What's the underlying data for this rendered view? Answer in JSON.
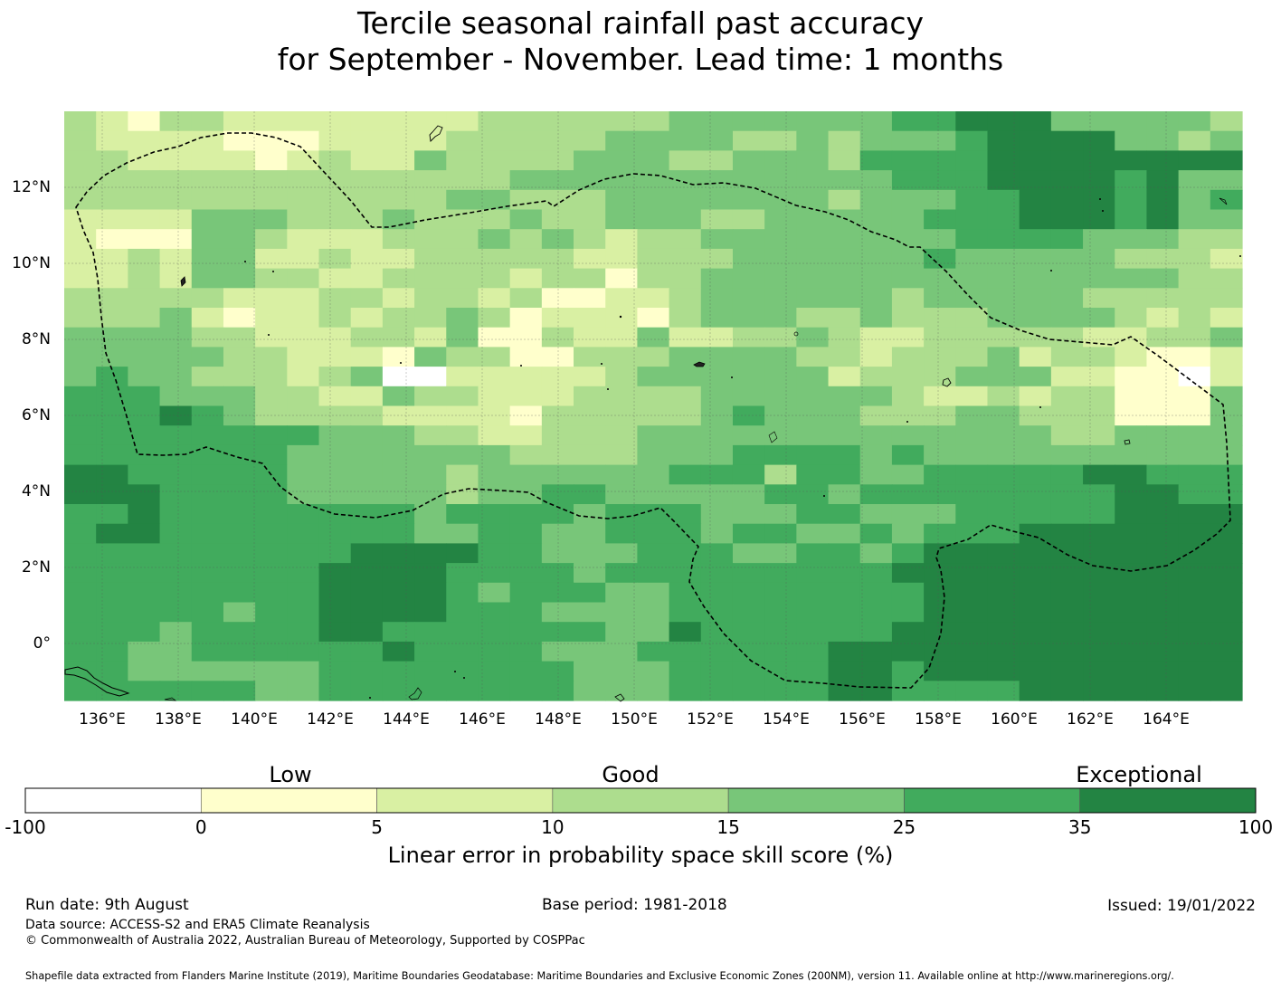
{
  "title": {
    "line1": "Tercile seasonal rainfall past accuracy",
    "line2": "for September - November. Lead time: 1 months"
  },
  "map": {
    "x_ticks": [
      "136°E",
      "138°E",
      "140°E",
      "142°E",
      "144°E",
      "146°E",
      "148°E",
      "150°E",
      "152°E",
      "154°E",
      "156°E",
      "158°E",
      "160°E",
      "162°E",
      "164°E"
    ],
    "y_ticks": [
      "12°N",
      "10°N",
      "8°N",
      "6°N",
      "4°N",
      "2°N",
      "0°"
    ],
    "lon_range": [
      135.0,
      166.0
    ],
    "lat_range": [
      -1.5,
      14.0
    ],
    "tick_lons": [
      136,
      138,
      140,
      142,
      144,
      146,
      148,
      150,
      152,
      154,
      156,
      158,
      160,
      162,
      164
    ],
    "tick_lats": [
      12,
      10,
      8,
      6,
      4,
      2,
      0
    ],
    "grid": true,
    "boundary": "dashed EEZ outline"
  },
  "colorbar": {
    "category_labels": {
      "low": "Low",
      "good": "Good",
      "exceptional": "Exceptional"
    },
    "tick_labels": [
      "-100",
      "0",
      "5",
      "10",
      "15",
      "25",
      "35",
      "100"
    ],
    "colors": [
      "#ffffff",
      "#ffffcc",
      "#d9f0a3",
      "#addd8e",
      "#78c679",
      "#41ab5d",
      "#238443"
    ],
    "label": "Linear error in probability space skill score (%)"
  },
  "footer": {
    "run_date": "Run date: 9th August",
    "base_period": "Base period: 1981-2018",
    "issued": "Issued: 19/01/2022",
    "data_source": "Data source: ACCESS-S2 and ERA5 Climate Reanalysis",
    "copyright": "© Commonwealth of Australia 2022, Australian Bureau of Meteorology, Supported by COSPPac",
    "shapefile": "Shapefile data extracted from Flanders Marine Institute (2019), Maritime Boundaries Geodatabase: Maritime Boundaries and Exclusive Economic Zones (200NM), version 11. Available online at http://www.marineregions.org/."
  },
  "grid_data": {
    "cell_size_deg": 0.833,
    "levels_legend": "0=white,1=#ffffcc,2=#d9f0a3,3=#addd8e,4=#78c679,5=#41ab5d,6=#238443",
    "rows": [
      "3213322222222333333444444455666444443",
      "3222211122223333344443343444566664434",
      "3322221232243333444334443555566666666",
      "3333333333333344444444444455566665644",
      "3333333333334433344444443444556665645",
      "2222444333433343344433444445556665644",
      "2111443222333434323344444444555544433",
      "2232442232233333223334444445444443332",
      "2232443322333323313344444444444444433",
      "3333322233233231122344444434444433333",
      "3334212232334312221344433433344443232",
      "4444332223324113224223343223333322334",
      "4444433222143311333444433233342332112",
      "4544333234002222234444442333444221102",
      "5554443322433222333344444432232331114",
      "5556543333222213333345444333443331114",
      "5555555544433223334444444444444334444",
      "5555555444444433334445555454444444444",
      "6655555444443444444555355445555566555",
      "6665555444443445544444554555555556655",
      "5565555555545555455544455444555556666",
      "5665555555544554455545544545556666666",
      "5555555556666554445554455456666666666",
      "5555555566665555455555555566666666666",
      "5555555566665455544555555556666666666",
      "5555545566665554444555555556666666666",
      "5554555566555555544655555566666666666",
      "5544555555655554445555556666666666666",
      "5544444455555555444555556656666666666",
      "5555554455555555444555556655556666666"
    ]
  }
}
